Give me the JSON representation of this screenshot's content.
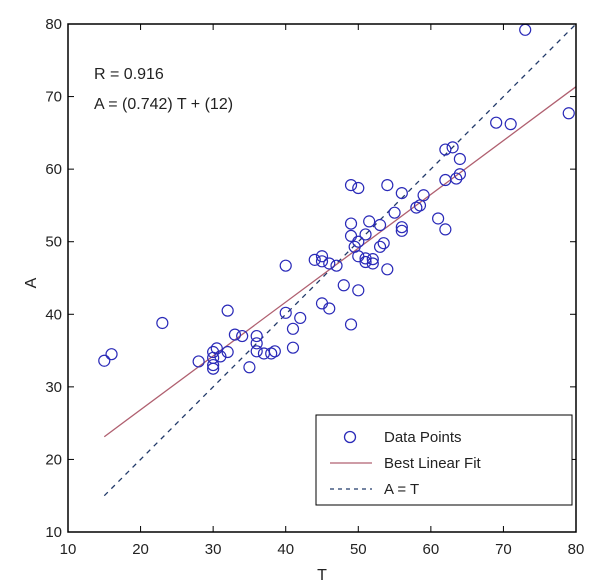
{
  "chart_data": {
    "type": "scatter",
    "title": "",
    "xlabel": "T",
    "ylabel": "A",
    "xlim": [
      10,
      80
    ],
    "ylim": [
      10,
      80
    ],
    "x_ticks": [
      10,
      20,
      30,
      40,
      50,
      60,
      70,
      80
    ],
    "y_ticks": [
      10,
      20,
      30,
      40,
      50,
      60,
      70,
      80
    ],
    "grid": false,
    "legend_position": "bottom-right",
    "colors": {
      "points": "#2a2ab8",
      "fit": "#b06070",
      "identity": "#223a6a",
      "axes": "#000000"
    },
    "annotations": [
      "R = 0.916",
      "A = (0.742) T + (12)"
    ],
    "legend": [
      {
        "label": "Data Points",
        "symbol": "circle"
      },
      {
        "label": "Best Linear Fit",
        "symbol": "solid-line"
      },
      {
        "label": "A = T",
        "symbol": "dashed-line"
      }
    ],
    "series": [
      {
        "name": "Data Points",
        "points": [
          [
            15,
            33.6
          ],
          [
            16,
            34.5
          ],
          [
            23,
            38.8
          ],
          [
            28,
            33.5
          ],
          [
            30,
            32.5
          ],
          [
            30,
            33
          ],
          [
            30,
            34
          ],
          [
            30,
            34.8
          ],
          [
            30.5,
            35.3
          ],
          [
            31,
            34.2
          ],
          [
            32,
            34.8
          ],
          [
            32,
            40.5
          ],
          [
            33,
            37.2
          ],
          [
            34,
            37
          ],
          [
            35,
            32.7
          ],
          [
            36,
            34.9
          ],
          [
            36,
            36
          ],
          [
            36,
            37
          ],
          [
            37,
            34.6
          ],
          [
            38,
            34.6
          ],
          [
            38.5,
            34.9
          ],
          [
            40,
            40.2
          ],
          [
            40,
            46.7
          ],
          [
            41,
            38
          ],
          [
            41,
            35.4
          ],
          [
            42,
            39.5
          ],
          [
            44,
            47.5
          ],
          [
            45,
            48
          ],
          [
            45,
            47.3
          ],
          [
            45,
            41.5
          ],
          [
            46,
            40.8
          ],
          [
            46,
            47
          ],
          [
            47,
            46.7
          ],
          [
            48,
            44
          ],
          [
            49,
            38.6
          ],
          [
            49,
            50.8
          ],
          [
            49,
            57.8
          ],
          [
            49,
            52.5
          ],
          [
            49.5,
            49.3
          ],
          [
            50,
            50
          ],
          [
            50,
            48
          ],
          [
            50,
            43.3
          ],
          [
            50,
            57.4
          ],
          [
            51,
            47.7
          ],
          [
            51,
            51
          ],
          [
            51,
            47.2
          ],
          [
            51.5,
            52.8
          ],
          [
            52,
            47.6
          ],
          [
            52,
            47
          ],
          [
            53,
            52.3
          ],
          [
            53,
            49.3
          ],
          [
            53.5,
            49.8
          ],
          [
            54,
            46.2
          ],
          [
            54,
            57.8
          ],
          [
            55,
            54
          ],
          [
            56,
            52
          ],
          [
            56,
            51.5
          ],
          [
            56,
            56.7
          ],
          [
            58,
            54.7
          ],
          [
            58.5,
            55
          ],
          [
            59,
            56.4
          ],
          [
            61,
            53.2
          ],
          [
            62,
            51.7
          ],
          [
            62,
            58.5
          ],
          [
            62,
            62.7
          ],
          [
            63,
            63
          ],
          [
            63.5,
            58.7
          ],
          [
            64,
            61.4
          ],
          [
            64,
            59.3
          ],
          [
            69,
            66.4
          ],
          [
            71,
            66.2
          ],
          [
            73,
            79.2
          ],
          [
            79,
            67.7
          ]
        ]
      },
      {
        "name": "Best Linear Fit",
        "slope": 0.742,
        "intercept": 12,
        "x_range": [
          15,
          80
        ]
      },
      {
        "name": "A = T",
        "slope": 1,
        "intercept": 0,
        "x_range": [
          15,
          80
        ]
      }
    ]
  }
}
